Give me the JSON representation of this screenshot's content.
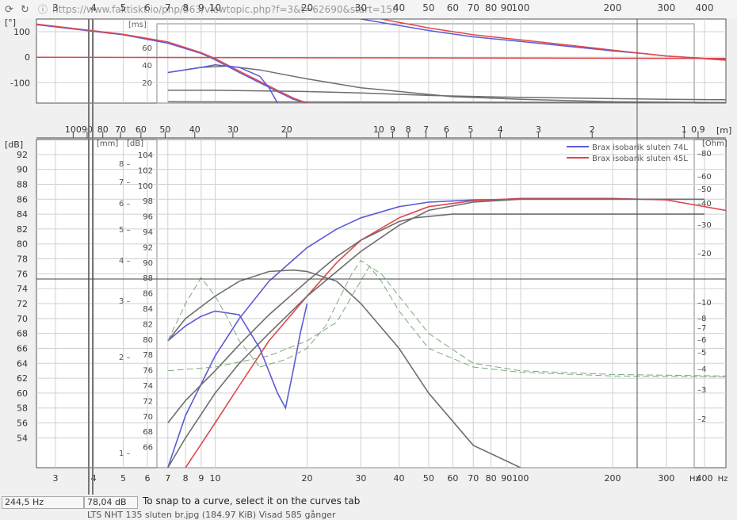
{
  "browser": {
    "url": "https://www.faktiskt.io/php/363/viewtopic.php?f=3&t=62690&start=150"
  },
  "status": {
    "freq": "244,5 Hz",
    "level": "78,04 dB",
    "hint": "To snap to a curve, select it on the curves tab",
    "footer": "LTS NHT 135 sluten br.jpg (184.97 KiB) Visad 585 gånger"
  },
  "colors": {
    "blue": "#5b5bd6",
    "red": "#e0474c",
    "gray": "#6e6e6e",
    "green": "#7aaa7a",
    "grid": "#d0d0d0"
  },
  "chart_data": [
    {
      "type": "line",
      "name": "phase",
      "ylabel": "[°]",
      "ylabel2": "[ms]",
      "xscale": "log",
      "xlim": [
        2.6,
        470
      ],
      "ylim": [
        -180,
        150
      ],
      "x_ticks": [
        3,
        4,
        5,
        6,
        7,
        8,
        9,
        10,
        20,
        30,
        40,
        50,
        60,
        70,
        80,
        90,
        100,
        200,
        300,
        400
      ],
      "y_ticks": [
        100,
        0,
        -100
      ],
      "y2_ticks": [
        60,
        40,
        20
      ],
      "series": [
        {
          "color": "blue",
          "x": [
            2.6,
            5,
            7,
            9,
            10,
            12,
            14,
            16,
            18,
            20
          ],
          "y": [
            128,
            88,
            55,
            15,
            -10,
            -60,
            -100,
            -135,
            -165,
            -180
          ]
        },
        {
          "color": "red",
          "x": [
            2.6,
            5,
            7,
            9,
            10,
            12,
            14,
            16,
            18,
            20
          ],
          "y": [
            130,
            90,
            60,
            18,
            -5,
            -55,
            -95,
            -130,
            -160,
            -180
          ]
        },
        {
          "color": "blue",
          "x": [
            20,
            30,
            50,
            70,
            100,
            150,
            200,
            250,
            300,
            470
          ],
          "y": [
            210,
            150,
            105,
            80,
            62,
            40,
            25,
            15,
            5,
            -10
          ]
        },
        {
          "color": "red",
          "x": [
            20,
            30,
            50,
            70,
            100,
            150,
            200,
            250,
            300,
            470
          ],
          "y": [
            225,
            165,
            115,
            88,
            68,
            45,
            28,
            15,
            5,
            -12
          ]
        },
        {
          "color": "red",
          "x": [
            2.6,
            470
          ],
          "y": [
            0,
            -5
          ]
        },
        {
          "color": "gray",
          "x": [
            7,
            9,
            11,
            14,
            20,
            30,
            60,
            100,
            200,
            470
          ],
          "y": [
            -60,
            -40,
            -35,
            -50,
            -85,
            -120,
            -155,
            -165,
            -175,
            -178
          ]
        },
        {
          "color": "gray",
          "x": [
            7,
            10,
            20,
            30,
            50,
            100,
            300,
            470
          ],
          "y": [
            -130,
            -130,
            -135,
            -140,
            -150,
            -158,
            -165,
            -167
          ]
        },
        {
          "color": "gray",
          "x": [
            7,
            470
          ],
          "y": [
            -175,
            -178
          ]
        },
        {
          "color": "blue",
          "x": [
            7,
            9,
            10,
            12,
            14,
            15,
            16
          ],
          "y": [
            -60,
            -40,
            -30,
            -40,
            -75,
            -120,
            -180
          ]
        }
      ]
    },
    {
      "type": "line",
      "name": "frequency response",
      "ylabel": "[dB]",
      "xscale": "log",
      "xlim": [
        2.6,
        470
      ],
      "ylim": [
        50,
        94
      ],
      "x_ticks": [
        3,
        4,
        5,
        6,
        7,
        8,
        9,
        10,
        20,
        30,
        40,
        50,
        60,
        70,
        80,
        90,
        100,
        200,
        300,
        400
      ],
      "x_unit": "Hz",
      "y_ticks": [
        92,
        90,
        88,
        86,
        84,
        82,
        80,
        78,
        76,
        74,
        72,
        70,
        68,
        66,
        64,
        62,
        60,
        58,
        56,
        54
      ],
      "inner_left_label": "[mm]",
      "inner_left_ticks": [
        "8",
        "7",
        "6",
        "5",
        "4",
        "3",
        "2",
        "1"
      ],
      "inner_db_label": "[dB]",
      "inner_db_ticks": [
        104,
        102,
        100,
        98,
        96,
        94,
        92,
        90,
        88,
        86,
        84,
        82,
        80,
        78,
        76,
        74,
        72,
        70,
        68,
        66
      ],
      "ohm_label": "[Ohm]",
      "ohm_ticks": [
        "80",
        "60",
        "50",
        "40",
        "30",
        "20",
        "10",
        "8",
        "7",
        "6",
        "5",
        "4",
        "3",
        "2"
      ],
      "wavelength_label": "[m]",
      "wavelength_ticks": [
        100,
        90,
        80,
        70,
        60,
        50,
        40,
        30,
        20,
        10,
        9,
        8,
        7,
        6,
        5,
        4,
        3,
        2,
        1,
        0.9
      ],
      "legend": [
        {
          "label": "Brax isobarik sluten 74L",
          "color": "blue"
        },
        {
          "label": "Brax isobarik sluten 45L",
          "color": "red"
        }
      ],
      "legend_position": "top-right",
      "series": [
        {
          "color": "blue",
          "x": [
            7,
            8,
            10,
            12,
            15,
            20,
            25,
            30,
            40,
            50,
            70,
            100,
            200,
            300,
            400
          ],
          "y": [
            50,
            57,
            65,
            70,
            75,
            79.5,
            82,
            83.5,
            85,
            85.6,
            85.9,
            86,
            86,
            86,
            86
          ]
        },
        {
          "color": "red",
          "x": [
            8,
            10,
            12,
            15,
            20,
            25,
            30,
            40,
            50,
            70,
            100,
            200,
            300,
            470
          ],
          "y": [
            50,
            56,
            61,
            67,
            73,
            77.5,
            80.5,
            83.5,
            85,
            85.8,
            86.1,
            86.1,
            85.9,
            84.5
          ]
        },
        {
          "color": "gray",
          "x": [
            7,
            8,
            10,
            12,
            15,
            20,
            25,
            30,
            40,
            45,
            60,
            100,
            200,
            400
          ],
          "y": [
            56,
            59,
            63,
            66.5,
            70.5,
            75,
            78.3,
            80.5,
            83,
            83.5,
            84,
            84,
            84,
            84
          ]
        },
        {
          "color": "gray",
          "x": [
            7,
            8,
            10,
            12,
            15,
            20,
            30,
            40,
            50,
            70,
            100,
            200,
            400
          ],
          "y": [
            50,
            54,
            60,
            64,
            68,
            73,
            79,
            82.5,
            84.5,
            85.6,
            86,
            86,
            86
          ]
        },
        {
          "color": "blue",
          "x": [
            7,
            8,
            9,
            10,
            12,
            14,
            16,
            17,
            18,
            19,
            20
          ],
          "y": [
            67,
            69,
            70.3,
            71,
            70.5,
            66,
            60,
            58,
            63,
            68,
            72
          ]
        },
        {
          "color": "gray",
          "x": [
            7,
            8,
            10,
            12,
            15,
            18,
            20,
            25,
            30,
            40,
            50,
            70,
            100
          ],
          "y": [
            67,
            70,
            73,
            75,
            76.3,
            76.5,
            76.3,
            75,
            72,
            66,
            60,
            53,
            50
          ]
        },
        {
          "color": "green",
          "x": [
            7,
            8,
            9,
            10,
            11,
            12,
            14
          ],
          "y": [
            67,
            72,
            75.5,
            73,
            70,
            67,
            63.5
          ]
        },
        {
          "color": "green",
          "x": [
            14,
            17,
            20,
            23,
            25,
            28,
            30,
            32,
            35,
            40,
            50,
            70,
            100,
            200,
            470
          ],
          "y": [
            63.5,
            64.5,
            66,
            69,
            72,
            76,
            77.8,
            77,
            75,
            71,
            66,
            63.5,
            62.8,
            62.3,
            62.2
          ]
        },
        {
          "color": "green",
          "x": [
            7,
            10,
            15,
            20,
            25,
            28,
            32,
            35,
            40,
            50,
            70,
            100,
            200,
            470
          ],
          "y": [
            63,
            63.5,
            65,
            67,
            69.5,
            73,
            77,
            76,
            73,
            68,
            64,
            63,
            62.5,
            62.3
          ]
        }
      ]
    }
  ]
}
